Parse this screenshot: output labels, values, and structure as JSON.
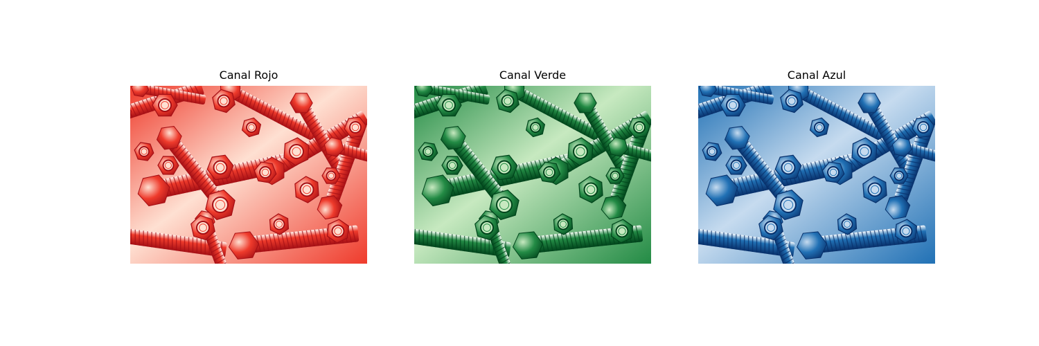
{
  "figure": {
    "panels": [
      {
        "title": "Canal Rojo",
        "colors": {
          "dark": "#a50f15",
          "mid": "#ef3b2c",
          "light": "#fee0d2",
          "pale": "#fff5f0"
        }
      },
      {
        "title": "Canal Verde",
        "colors": {
          "dark": "#00441b",
          "mid": "#238b45",
          "light": "#c7e9c0",
          "pale": "#f7fcf5"
        }
      },
      {
        "title": "Canal Azul",
        "colors": {
          "dark": "#08306b",
          "mid": "#2171b5",
          "light": "#c6dbef",
          "pale": "#f7fbff"
        }
      }
    ]
  }
}
